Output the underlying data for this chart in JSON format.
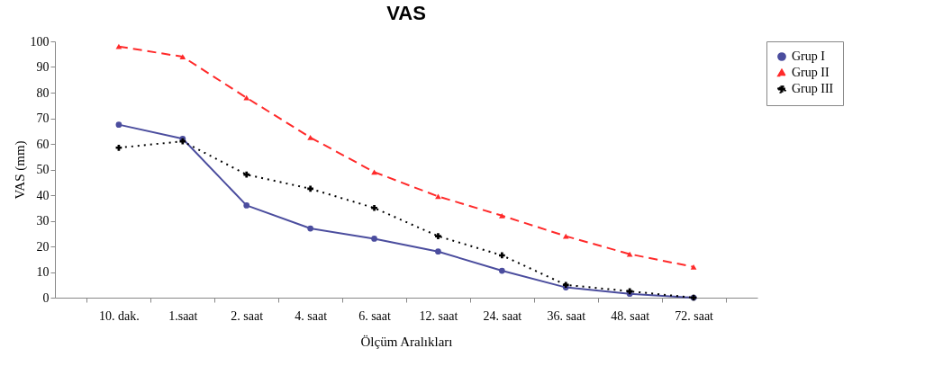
{
  "chart_data": {
    "type": "line",
    "title": "VAS",
    "xlabel": "Ölçüm Aralıkları",
    "ylabel": "VAS (mm)",
    "categories": [
      "10. dak.",
      "1.saat",
      "2. saat",
      "4. saat",
      "6. saat",
      "12. saat",
      "24. saat",
      "36. saat",
      "48. saat",
      "72. saat"
    ],
    "series": [
      {
        "name": "Grup I",
        "color": "#4b4d9e",
        "line_style": "solid",
        "marker": "circle",
        "values": [
          67.5,
          62,
          36,
          27,
          23,
          18,
          10.5,
          4,
          1.5,
          0
        ]
      },
      {
        "name": "Grup II",
        "color": "#ff2a2a",
        "line_style": "dashed",
        "marker": "triangle",
        "values": [
          98,
          94,
          78,
          62.5,
          49,
          39.5,
          32,
          24,
          17,
          12
        ]
      },
      {
        "name": "Grup III",
        "color": "#000000",
        "line_style": "dotted",
        "marker": "cross",
        "values": [
          58.5,
          61,
          48,
          42.5,
          35,
          24,
          16.5,
          5,
          2.5,
          0
        ]
      }
    ],
    "ylim": [
      0,
      100
    ],
    "yticks": [
      0,
      10,
      20,
      30,
      40,
      50,
      60,
      70,
      80,
      90,
      100
    ],
    "grid": false,
    "legend": "right"
  }
}
